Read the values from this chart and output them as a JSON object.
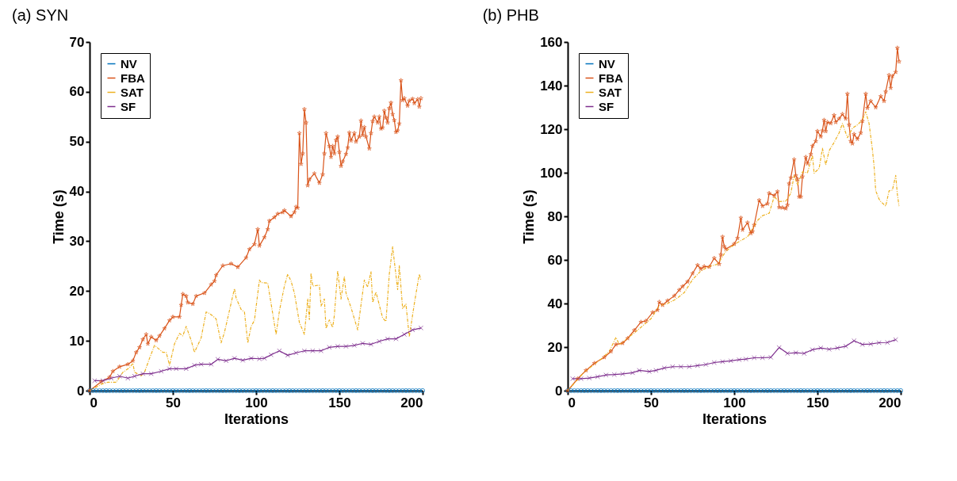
{
  "chart_data": [
    {
      "type": "line",
      "title": "(a) SYN",
      "xlabel": "Iterations",
      "ylabel": "Time (s)",
      "xlim": [
        0,
        200
      ],
      "xticks": [
        0,
        50,
        100,
        150,
        200
      ],
      "ylim": [
        0,
        70
      ],
      "yticks": [
        0,
        10,
        20,
        30,
        40,
        50,
        60,
        70
      ],
      "grid": false,
      "legend": "top left",
      "series": [
        {
          "name": "NV",
          "color": "#0072bd",
          "marker": "circle",
          "line_style": "solid",
          "x": [
            0,
            2,
            4,
            6,
            8,
            10,
            12,
            14,
            16,
            18,
            20,
            22,
            24,
            26,
            28,
            30,
            32,
            34,
            36,
            38,
            40,
            42,
            44,
            46,
            48,
            50,
            52,
            54,
            56,
            58,
            60,
            62,
            64,
            66,
            68,
            70,
            72,
            74,
            76,
            78,
            80,
            82,
            84,
            86,
            88,
            90,
            92,
            94,
            96,
            98,
            100,
            102,
            104,
            106,
            108,
            110,
            112,
            114,
            116,
            118,
            120,
            122,
            124,
            126,
            128,
            130,
            132,
            134,
            136,
            138,
            140,
            142,
            144,
            146,
            148,
            150,
            152,
            154,
            156,
            158,
            160,
            162,
            164,
            166,
            168,
            170,
            172,
            174,
            176,
            178,
            180,
            182,
            184,
            186,
            188,
            190,
            192,
            194,
            196,
            198,
            200
          ],
          "values": [
            0,
            0,
            0,
            0,
            0,
            0,
            0,
            0,
            0,
            0,
            0,
            0,
            0,
            0,
            0,
            0,
            0,
            0,
            0,
            0,
            0,
            0,
            0,
            0,
            0,
            0,
            0,
            0,
            0,
            0,
            0,
            0,
            0,
            0,
            0,
            0,
            0,
            0,
            0,
            0,
            0,
            0,
            0,
            0,
            0,
            0,
            0,
            0,
            0,
            0,
            0,
            0,
            0,
            0,
            0,
            0,
            0,
            0,
            0,
            0,
            0,
            0,
            0,
            0,
            0,
            0,
            0,
            0,
            0,
            0,
            0,
            0,
            0,
            0,
            0,
            0,
            0,
            0,
            0,
            0,
            0,
            0,
            0,
            0,
            0,
            0,
            0,
            0,
            0,
            0,
            0,
            0,
            0,
            0,
            0,
            0,
            0,
            0,
            0,
            0,
            0
          ]
        },
        {
          "name": "FBA",
          "color": "#d95319",
          "marker": "star",
          "line_style": "solid",
          "x": [
            0,
            7,
            12,
            14,
            18,
            23,
            26,
            28,
            30,
            32,
            34,
            35,
            37,
            40,
            42,
            45,
            48,
            50,
            54,
            55,
            56,
            58,
            59,
            62,
            64,
            69,
            73,
            75,
            76,
            80,
            85,
            89,
            94,
            96,
            99,
            101,
            102,
            105,
            107,
            108,
            111,
            113,
            116,
            117,
            121,
            123,
            124,
            125,
            126,
            127,
            128,
            129,
            130,
            131,
            132,
            135,
            138,
            140,
            141,
            142,
            144,
            145,
            146,
            147,
            148,
            149,
            150,
            151,
            152,
            154,
            155,
            156,
            157,
            159,
            160,
            162,
            163,
            164,
            165,
            166,
            168,
            169,
            170,
            171,
            173,
            174,
            175,
            176,
            177,
            178,
            179,
            180,
            181,
            182,
            183,
            184,
            185,
            186,
            187,
            188,
            189,
            191,
            192,
            194,
            195,
            197,
            198,
            199
          ],
          "values": [
            0,
            1.8,
            2.7,
            3.9,
            4.8,
            5.3,
            6.0,
            7.7,
            8.7,
            10.3,
            11.3,
            9.4,
            10.8,
            10.1,
            11.0,
            12.5,
            14.1,
            14.8,
            14.8,
            17.2,
            19.4,
            19.0,
            17.7,
            17.4,
            19.0,
            19.6,
            21.3,
            22.0,
            23.2,
            25.1,
            25.5,
            24.8,
            26.7,
            28.4,
            29.4,
            32.4,
            29.1,
            30.8,
            32.4,
            34.1,
            34.8,
            35.5,
            35.8,
            36.2,
            35.0,
            35.8,
            36.9,
            36.7,
            51.7,
            45.5,
            47.6,
            56.5,
            53.8,
            41.2,
            42.4,
            43.6,
            41.7,
            43.4,
            47.6,
            51.7,
            49.1,
            46.9,
            49.1,
            47.6,
            50.3,
            51.0,
            47.9,
            45.1,
            46.0,
            47.5,
            48.8,
            51.8,
            50.2,
            51.7,
            50.0,
            51.0,
            54.2,
            51.3,
            52.9,
            51.0,
            48.6,
            51.7,
            54.1,
            55.0,
            53.8,
            55.0,
            52.6,
            52.8,
            56.2,
            54.8,
            53.8,
            56.7,
            57.8,
            55.5,
            54.3,
            51.9,
            52.2,
            53.6,
            62.3,
            58.3,
            58.7,
            57.2,
            58.2,
            58.6,
            57.7,
            58.5,
            57.0,
            58.7
          ]
        },
        {
          "name": "SAT",
          "color": "#edb120",
          "marker": "none",
          "line_style": "dashed",
          "x": [
            0,
            7,
            11,
            16,
            20,
            24,
            26,
            27,
            31,
            33,
            36,
            39,
            44,
            46,
            48,
            51,
            54,
            56,
            58,
            61,
            63,
            67,
            70,
            72,
            74,
            76,
            79,
            81,
            87,
            88,
            91,
            93,
            95,
            97,
            99,
            102,
            103,
            107,
            112,
            114,
            117,
            119,
            121,
            123,
            126,
            129,
            131,
            132,
            133,
            134,
            138,
            139,
            141,
            142,
            144,
            146,
            147,
            149,
            151,
            153,
            154,
            157,
            161,
            165,
            167,
            169,
            170,
            172,
            176,
            178,
            180,
            182,
            185,
            186,
            188,
            190,
            192,
            195,
            198,
            199
          ],
          "values": [
            0,
            1.3,
            1.7,
            1.7,
            3.7,
            4.6,
            5.5,
            3.7,
            3.0,
            3.7,
            6.5,
            9.1,
            7.7,
            7.7,
            5.1,
            9.4,
            11.5,
            11.0,
            12.9,
            10.1,
            7.7,
            10.6,
            15.8,
            15.5,
            15.0,
            14.4,
            9.6,
            11.7,
            20.5,
            18.6,
            16.3,
            15.8,
            9.6,
            12.9,
            14.1,
            22.2,
            21.7,
            21.6,
            11.3,
            16.0,
            21.0,
            23.4,
            22.0,
            19.6,
            13.7,
            11.3,
            18.4,
            14.3,
            23.6,
            21.0,
            21.2,
            17.0,
            18.4,
            12.5,
            14.2,
            12.7,
            15.1,
            24.1,
            18.4,
            22.9,
            19.6,
            16.7,
            12.2,
            22.2,
            20.8,
            23.9,
            17.7,
            19.8,
            14.6,
            13.9,
            23.4,
            28.9,
            20.3,
            25.1,
            16.5,
            17.4,
            10.8,
            17.4,
            23.4,
            22.2
          ]
        },
        {
          "name": "SF",
          "color": "#7e2f8e",
          "marker": "cross",
          "line_style": "solid",
          "x": [
            3,
            8,
            13,
            18,
            23,
            27,
            32,
            37,
            43,
            48,
            52,
            58,
            63,
            67,
            73,
            77,
            82,
            87,
            92,
            97,
            102,
            105,
            109,
            114,
            119,
            124,
            129,
            134,
            139,
            144,
            149,
            154,
            159,
            164,
            169,
            174,
            179,
            184,
            189,
            194,
            199
          ],
          "values": [
            2.0,
            2.0,
            2.5,
            2.9,
            2.5,
            2.9,
            3.4,
            3.4,
            3.9,
            4.4,
            4.4,
            4.4,
            5.1,
            5.3,
            5.3,
            6.3,
            6.0,
            6.5,
            6.1,
            6.5,
            6.4,
            6.5,
            7.2,
            8.0,
            7.1,
            7.6,
            8.0,
            8.0,
            8.0,
            8.7,
            8.9,
            8.9,
            9.1,
            9.5,
            9.3,
            9.9,
            10.4,
            10.4,
            11.3,
            12.2,
            12.6
          ]
        }
      ]
    },
    {
      "type": "line",
      "title": "(b) PHB",
      "xlabel": "Iterations",
      "ylabel": "Time (s)",
      "xlim": [
        0,
        200
      ],
      "xticks": [
        0,
        50,
        100,
        150,
        200
      ],
      "ylim": [
        0,
        160
      ],
      "yticks": [
        0,
        20,
        40,
        60,
        80,
        100,
        120,
        140,
        160
      ],
      "grid": false,
      "legend": "top left",
      "series": [
        {
          "name": "NV",
          "color": "#0072bd",
          "marker": "circle",
          "line_style": "solid",
          "x": [
            0,
            2,
            4,
            6,
            8,
            10,
            12,
            14,
            16,
            18,
            20,
            22,
            24,
            26,
            28,
            30,
            32,
            34,
            36,
            38,
            40,
            42,
            44,
            46,
            48,
            50,
            52,
            54,
            56,
            58,
            60,
            62,
            64,
            66,
            68,
            70,
            72,
            74,
            76,
            78,
            80,
            82,
            84,
            86,
            88,
            90,
            92,
            94,
            96,
            98,
            100,
            102,
            104,
            106,
            108,
            110,
            112,
            114,
            116,
            118,
            120,
            122,
            124,
            126,
            128,
            130,
            132,
            134,
            136,
            138,
            140,
            142,
            144,
            146,
            148,
            150,
            152,
            154,
            156,
            158,
            160,
            162,
            164,
            166,
            168,
            170,
            172,
            174,
            176,
            178,
            180,
            182,
            184,
            186,
            188,
            190,
            192,
            194,
            196,
            198,
            200
          ],
          "values": [
            0,
            0,
            0,
            0,
            0,
            0,
            0,
            0,
            0,
            0,
            0,
            0,
            0,
            0,
            0,
            0,
            0,
            0,
            0,
            0,
            0,
            0,
            0,
            0,
            0,
            0,
            0,
            0,
            0,
            0,
            0,
            0,
            0,
            0,
            0,
            0,
            0,
            0,
            0,
            0,
            0,
            0,
            0,
            0,
            0,
            0,
            0,
            0,
            0,
            0,
            0,
            0,
            0,
            0,
            0,
            0,
            0,
            0,
            0,
            0,
            0,
            0,
            0,
            0,
            0,
            0,
            0,
            0,
            0,
            0,
            0,
            0,
            0,
            0,
            0,
            0,
            0,
            0,
            0,
            0,
            0,
            0,
            0,
            0,
            0,
            0,
            0,
            0,
            0,
            0,
            0,
            0,
            0,
            0,
            0,
            0,
            0,
            0,
            0,
            0,
            0
          ]
        },
        {
          "name": "FBA",
          "color": "#d95319",
          "marker": "star",
          "line_style": "solid",
          "x": [
            0,
            6,
            11,
            16,
            22,
            26,
            29,
            33,
            36,
            40,
            44,
            47,
            51,
            54,
            55,
            57,
            60,
            64,
            67,
            69,
            72,
            75,
            78,
            80,
            82,
            85,
            88,
            91,
            92,
            93,
            94,
            95,
            100,
            102,
            104,
            105,
            108,
            110,
            111,
            112,
            115,
            117,
            120,
            121,
            124,
            126,
            127,
            129,
            131,
            132,
            133,
            134,
            136,
            137,
            138,
            139,
            140,
            141,
            143,
            144,
            146,
            147,
            149,
            150,
            152,
            153,
            154,
            155,
            156,
            158,
            160,
            161,
            163,
            165,
            167,
            168,
            169,
            170,
            171,
            172,
            174,
            176,
            177,
            179,
            180,
            182,
            185,
            188,
            190,
            191,
            193,
            194,
            195,
            197,
            198,
            199
          ],
          "values": [
            0,
            5.5,
            9.3,
            12.6,
            15.3,
            18.0,
            21.2,
            21.8,
            24.0,
            27.7,
            31.5,
            32.0,
            35.9,
            37.0,
            40.7,
            39.3,
            41.3,
            43.5,
            46.2,
            47.8,
            50.0,
            53.8,
            57.6,
            55.9,
            57.0,
            56.8,
            60.8,
            58.1,
            62.4,
            70.6,
            66.2,
            65.0,
            67.3,
            70.0,
            79.3,
            73.8,
            77.1,
            72.2,
            73.0,
            76.0,
            87.4,
            84.7,
            85.8,
            90.6,
            89.5,
            91.4,
            84.1,
            84.0,
            83.6,
            85.2,
            95.0,
            97.7,
            106.1,
            98.7,
            97.1,
            89.0,
            89.0,
            98.2,
            107.2,
            104.2,
            108.5,
            112.3,
            114.5,
            119.1,
            116.6,
            119.3,
            124.2,
            119.0,
            123.2,
            122.7,
            126.4,
            123.2,
            124.8,
            126.9,
            124.8,
            136.2,
            122.0,
            114.5,
            113.4,
            117.7,
            115.5,
            118.3,
            123.7,
            136.2,
            129.7,
            132.9,
            130.0,
            135.1,
            132.9,
            137.2,
            144.8,
            138.9,
            144.3,
            146.2,
            157.3,
            151.0
          ]
        },
        {
          "name": "SAT",
          "color": "#edb120",
          "marker": "none",
          "line_style": "dashed",
          "x": [
            0,
            10,
            20,
            25,
            29,
            31,
            40,
            50,
            55,
            60,
            65,
            70,
            75,
            80,
            85,
            90,
            95,
            100,
            102,
            108,
            114,
            117,
            121,
            124,
            127,
            131,
            134,
            136,
            138,
            141,
            144,
            147,
            148,
            151,
            153,
            155,
            157,
            160,
            163,
            165,
            168,
            171,
            174,
            177,
            179,
            181,
            183,
            184,
            185,
            187,
            188,
            191,
            193,
            195,
            197,
            198,
            199
          ],
          "values": [
            0,
            8.5,
            14.5,
            18.0,
            24.5,
            21.0,
            26.5,
            33.0,
            39.0,
            40.0,
            42.0,
            45.0,
            51.0,
            55.0,
            57.0,
            58.0,
            64.0,
            67.0,
            68.0,
            70.6,
            78.1,
            80.3,
            81.4,
            89.0,
            86.8,
            87.0,
            90.6,
            98.8,
            94.4,
            100.4,
            100.0,
            108.0,
            99.8,
            102.0,
            111.2,
            103.6,
            110.1,
            113.9,
            118.3,
            122.6,
            116.1,
            120.4,
            122.0,
            124.2,
            128.0,
            122.6,
            110.7,
            103.1,
            91.7,
            87.9,
            86.8,
            84.7,
            91.7,
            92.0,
            98.8,
            90.1,
            84.7
          ]
        },
        {
          "name": "SF",
          "color": "#7e2f8e",
          "marker": "cross",
          "line_style": "solid",
          "x": [
            3,
            8,
            13,
            18,
            23,
            28,
            33,
            39,
            43,
            49,
            53,
            58,
            63,
            68,
            73,
            78,
            83,
            88,
            93,
            98,
            103,
            107,
            112,
            117,
            122,
            127,
            132,
            137,
            142,
            147,
            152,
            157,
            162,
            167,
            172,
            177,
            182,
            187,
            192,
            197
          ],
          "values": [
            5.5,
            5.5,
            5.8,
            6.4,
            7.2,
            7.4,
            7.7,
            8.2,
            9.3,
            8.8,
            9.3,
            10.4,
            11.0,
            11.0,
            11.0,
            11.5,
            12.0,
            12.9,
            13.3,
            13.7,
            14.2,
            14.5,
            15.1,
            15.1,
            15.3,
            19.8,
            17.1,
            17.4,
            17.1,
            18.8,
            19.6,
            19.0,
            19.6,
            20.4,
            22.9,
            21.2,
            21.4,
            22.0,
            22.1,
            23.4
          ]
        }
      ]
    }
  ]
}
